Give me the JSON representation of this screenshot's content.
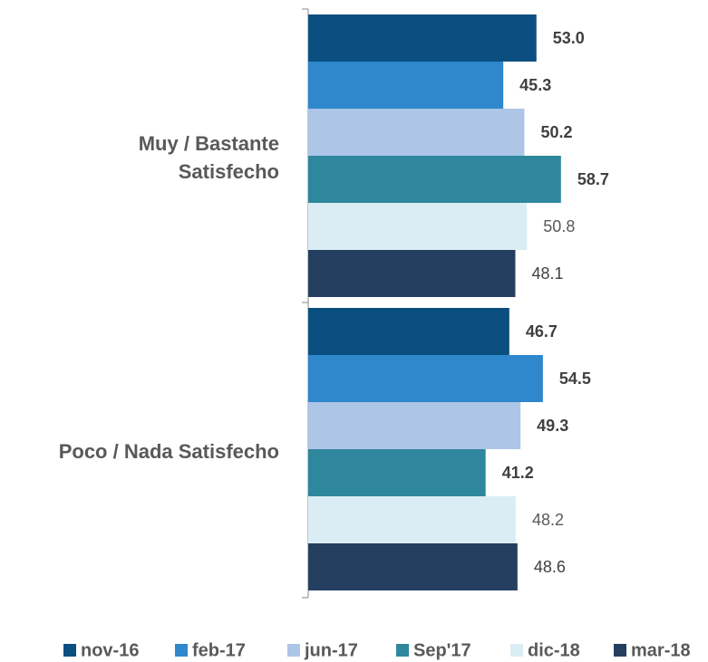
{
  "chart_data": {
    "type": "hbar",
    "categories": [
      "Muy / Bastante Satisfecho",
      "Poco / Nada Satisfecho"
    ],
    "series": [
      {
        "name": "nov-16",
        "color": "#0b4f80",
        "values": [
          53.0,
          46.7
        ],
        "value_labels": [
          "53.0",
          "46.7"
        ]
      },
      {
        "name": "feb-17",
        "color": "#2f87cc",
        "values": [
          45.3,
          54.5
        ],
        "value_labels": [
          "45.3",
          "54.5"
        ]
      },
      {
        "name": "jun-17",
        "color": "#adc5e7",
        "values": [
          50.2,
          49.3
        ],
        "value_labels": [
          "50.2",
          "49.3"
        ]
      },
      {
        "name": "Sep'17",
        "color": "#2e879c",
        "values": [
          58.7,
          41.2
        ],
        "value_labels": [
          "58.7",
          "41.2"
        ]
      },
      {
        "name": "dic-18",
        "color": "#daedf4",
        "values": [
          50.8,
          48.2
        ],
        "value_labels": [
          "50.8",
          "48.2"
        ]
      },
      {
        "name": "mar-18",
        "color": "#243f60",
        "values": [
          48.1,
          48.6
        ],
        "value_labels": [
          "48.1",
          "48.6"
        ]
      }
    ],
    "legend": "bottom"
  }
}
